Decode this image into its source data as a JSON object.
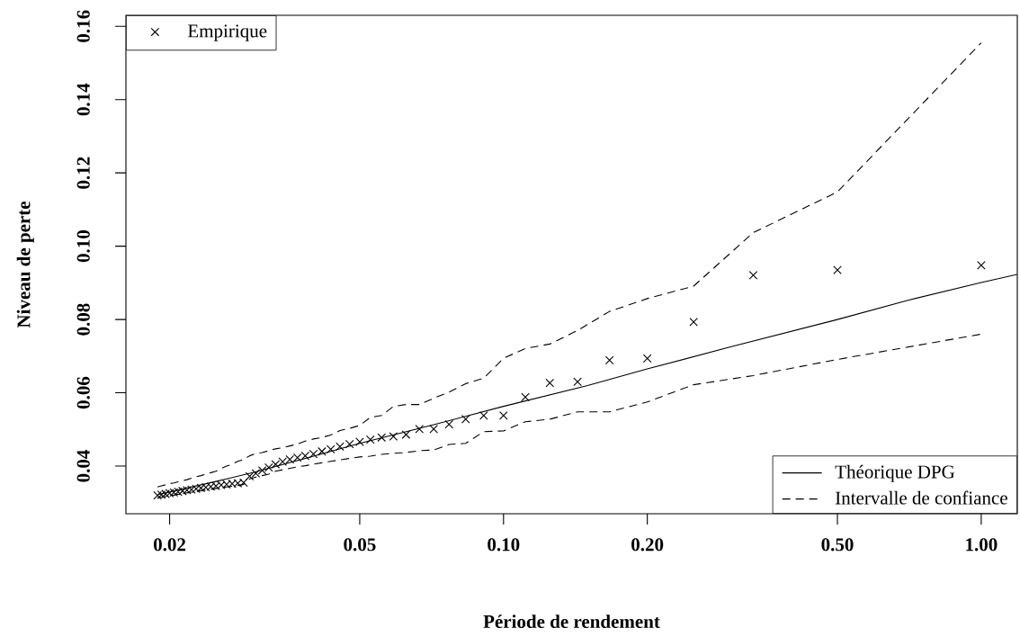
{
  "chart_data": {
    "type": "scatter",
    "xlabel": "Période de rendement",
    "ylabel": "Niveau de perte",
    "log": "x",
    "xlim": [
      0.0162,
      1.19
    ],
    "ylim": [
      0.027,
      0.163
    ],
    "xticks": [
      {
        "value": 0.02,
        "label": "0.02"
      },
      {
        "value": 0.05,
        "label": "0.05"
      },
      {
        "value": 0.1,
        "label": "0.10"
      },
      {
        "value": 0.2,
        "label": "0.20"
      },
      {
        "value": 0.5,
        "label": "0.50"
      },
      {
        "value": 1,
        "label": "1.00"
      }
    ],
    "yticks": [
      {
        "value": 0.04,
        "label": "0.04"
      },
      {
        "value": 0.06,
        "label": "0.06"
      },
      {
        "value": 0.08,
        "label": "0.08"
      },
      {
        "value": 0.1,
        "label": "0.10"
      },
      {
        "value": 0.12,
        "label": "0.12"
      },
      {
        "value": 0.14,
        "label": "0.14"
      },
      {
        "value": 0.16,
        "label": "0.16"
      }
    ],
    "grid": false,
    "legend": "bottom right",
    "series": [
      {
        "name": "Empirique",
        "marker": "cross",
        "color": "#000000",
        "x": [
          0.01887,
          0.01923,
          0.01961,
          0.02,
          0.02041,
          0.02083,
          0.02128,
          0.02174,
          0.02222,
          0.02273,
          0.02326,
          0.02381,
          0.02439,
          0.025,
          0.02564,
          0.02632,
          0.02703,
          0.02778,
          0.02857,
          0.02941,
          0.0303,
          0.03125,
          0.03226,
          0.03333,
          0.03448,
          0.03571,
          0.03704,
          0.03846,
          0.04,
          0.04167,
          0.04348,
          0.04545,
          0.04762,
          0.05,
          0.05263,
          0.05556,
          0.05882,
          0.0625,
          0.06667,
          0.07143,
          0.07692,
          0.08333,
          0.09091,
          0.1,
          0.1111,
          0.125,
          0.1429,
          0.1667,
          0.2,
          0.25,
          0.3333,
          0.5,
          1
        ],
        "values": [
          0.032,
          0.0322,
          0.0324,
          0.0326,
          0.0328,
          0.033,
          0.0332,
          0.0334,
          0.0336,
          0.0338,
          0.034,
          0.0342,
          0.0344,
          0.0346,
          0.0348,
          0.035,
          0.0352,
          0.0353,
          0.0355,
          0.0372,
          0.038,
          0.0388,
          0.0396,
          0.0405,
          0.0412,
          0.0418,
          0.0423,
          0.0428,
          0.0433,
          0.044,
          0.0446,
          0.0453,
          0.046,
          0.0466,
          0.0472,
          0.0478,
          0.0481,
          0.0486,
          0.0501,
          0.0501,
          0.0514,
          0.0528,
          0.0538,
          0.0538,
          0.0588,
          0.0627,
          0.063,
          0.0689,
          0.0694,
          0.0793,
          0.0921,
          0.0935,
          0.0948
        ]
      },
      {
        "name": "Théorique DPG",
        "type": "line",
        "line_style": "solid",
        "color": "#000000",
        "x": [
          0.0189,
          0.025,
          0.03,
          0.04,
          0.05,
          0.07,
          0.1,
          0.15,
          0.2,
          0.3,
          0.5,
          0.7,
          1,
          1.19
        ],
        "values": [
          0.0322,
          0.0358,
          0.0383,
          0.0427,
          0.0462,
          0.051,
          0.0563,
          0.062,
          0.0665,
          0.0726,
          0.08,
          0.0852,
          0.0901,
          0.0923
        ]
      },
      {
        "name": "Intervalle de confiance",
        "type": "line",
        "line_style": "dashed",
        "color": "#000000",
        "x": [
          0.01887,
          0.01923,
          0.01961,
          0.02,
          0.02041,
          0.02083,
          0.02128,
          0.02174,
          0.02222,
          0.02273,
          0.02326,
          0.02381,
          0.02439,
          0.025,
          0.02564,
          0.02632,
          0.02703,
          0.02778,
          0.02857,
          0.02941,
          0.0303,
          0.03125,
          0.03226,
          0.03333,
          0.03448,
          0.03571,
          0.03704,
          0.03846,
          0.04,
          0.04167,
          0.04348,
          0.04545,
          0.04762,
          0.05,
          0.05263,
          0.05556,
          0.05882,
          0.0625,
          0.06667,
          0.07143,
          0.07692,
          0.08333,
          0.09091,
          0.1,
          0.1111,
          0.125,
          0.1429,
          0.1667,
          0.2,
          0.25,
          0.3333,
          0.5,
          1
        ],
        "values": [
          0.0343,
          0.0346,
          0.0349,
          0.0352,
          0.0354,
          0.0357,
          0.036,
          0.0363,
          0.0367,
          0.0371,
          0.0374,
          0.0378,
          0.0382,
          0.0386,
          0.0393,
          0.04,
          0.0405,
          0.0413,
          0.0418,
          0.0428,
          0.0434,
          0.0437,
          0.0442,
          0.0447,
          0.045,
          0.0455,
          0.046,
          0.0468,
          0.0474,
          0.0478,
          0.0485,
          0.0497,
          0.0503,
          0.0511,
          0.0533,
          0.0538,
          0.0563,
          0.0568,
          0.0568,
          0.0585,
          0.0602,
          0.0625,
          0.064,
          0.0694,
          0.0721,
          0.0733,
          0.077,
          0.0822,
          0.0857,
          0.0891,
          0.1037,
          0.1148,
          0.1555
        ]
      },
      {
        "type": "line",
        "line_style": "dashed",
        "color": "#000000",
        "x": [
          0.01887,
          0.01923,
          0.01961,
          0.02,
          0.02041,
          0.02083,
          0.02128,
          0.02174,
          0.02222,
          0.02273,
          0.02326,
          0.02381,
          0.02439,
          0.025,
          0.02564,
          0.02632,
          0.02703,
          0.02778,
          0.02857,
          0.02941,
          0.0303,
          0.03125,
          0.03226,
          0.03333,
          0.03448,
          0.03571,
          0.03704,
          0.03846,
          0.04,
          0.04167,
          0.04348,
          0.04545,
          0.04762,
          0.05,
          0.05263,
          0.05556,
          0.05882,
          0.0625,
          0.06667,
          0.07143,
          0.07692,
          0.08333,
          0.09091,
          0.1,
          0.1111,
          0.125,
          0.1429,
          0.1667,
          0.2,
          0.25,
          0.3333,
          0.5,
          1
        ],
        "values": [
          0.0313,
          0.0315,
          0.0317,
          0.0319,
          0.0321,
          0.0323,
          0.0325,
          0.0327,
          0.0329,
          0.0331,
          0.0333,
          0.0335,
          0.0337,
          0.0339,
          0.0341,
          0.0343,
          0.0345,
          0.0347,
          0.035,
          0.0365,
          0.037,
          0.0374,
          0.0378,
          0.0386,
          0.039,
          0.0394,
          0.0398,
          0.0401,
          0.0405,
          0.0409,
          0.0413,
          0.0417,
          0.0421,
          0.0425,
          0.0427,
          0.0432,
          0.0435,
          0.0437,
          0.0442,
          0.0444,
          0.0459,
          0.0462,
          0.0494,
          0.0496,
          0.0521,
          0.0528,
          0.0548,
          0.0548,
          0.0575,
          0.0622,
          0.0647,
          0.0691,
          0.076
        ]
      }
    ]
  }
}
